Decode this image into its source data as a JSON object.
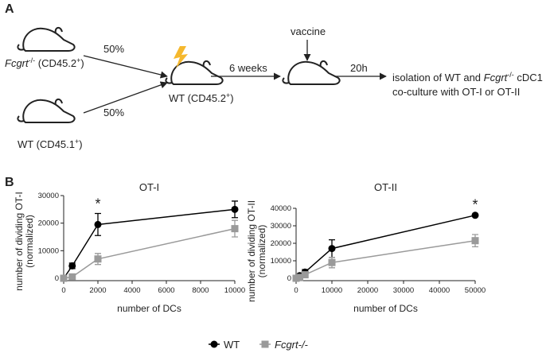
{
  "panel_a": {
    "letter": "A",
    "donor1": [
      "Fcgrt",
      "-/-",
      " (CD45.2",
      "+",
      ")"
    ],
    "donor2": [
      "WT (CD45.1",
      "+",
      ")"
    ],
    "pct1": "50%",
    "pct2": "50%",
    "recipient": [
      "WT (CD45.2",
      "+",
      ")"
    ],
    "step1": "6 weeks",
    "vaccine": "vaccine",
    "step2": "20h",
    "outcome1": [
      "isolation of WT and ",
      "Fcgrt",
      "-/-",
      " cDC1"
    ],
    "outcome2": "co-culture with OT-I or OT-II"
  },
  "panel_b_letter": "B",
  "chart_data": [
    {
      "type": "line",
      "title": "OT-I",
      "xlabel": "number of DCs",
      "ylabel": [
        "number of dividing OT-I",
        "(normalized)"
      ],
      "x": [
        0,
        500,
        2000,
        10000
      ],
      "series": [
        {
          "name": "WT",
          "color": "#000000",
          "marker": "circle",
          "values": [
            0,
            4500,
            19500,
            25000
          ],
          "error": [
            0,
            1000,
            4000,
            3000
          ]
        },
        {
          "name": "Fcgrt-/-",
          "color": "#9a9a9a",
          "marker": "square",
          "values": [
            0,
            500,
            7000,
            18000
          ],
          "error": [
            0,
            500,
            2000,
            3000
          ]
        }
      ],
      "xlim": [
        0,
        10000
      ],
      "xticks": [
        0,
        2000,
        4000,
        6000,
        8000,
        10000
      ],
      "ylim": [
        0,
        30000
      ],
      "yticks": [
        0,
        10000,
        20000,
        30000
      ],
      "annotation": {
        "text": "*",
        "x": 2000
      }
    },
    {
      "type": "line",
      "title": "OT-II",
      "xlabel": "number of DCs",
      "ylabel": [
        "number of dividing OT-II",
        "(normalized)"
      ],
      "x": [
        0,
        1000,
        2500,
        10000,
        50000
      ],
      "series": [
        {
          "color": "#000000",
          "marker": "circle",
          "values": [
            0,
            1500,
            3500,
            17000,
            36000
          ],
          "error": [
            0,
            500,
            1500,
            5000,
            500
          ]
        },
        {
          "color": "#9a9a9a",
          "marker": "square",
          "values": [
            0,
            500,
            2000,
            9000,
            21500
          ],
          "error": [
            0,
            300,
            1000,
            3000,
            3500
          ]
        }
      ],
      "xlim": [
        0,
        50000
      ],
      "xticks": [
        0,
        10000,
        20000,
        30000,
        40000,
        50000
      ],
      "ylim": [
        0,
        40000
      ],
      "yticks": [
        0,
        10000,
        20000,
        30000,
        40000
      ],
      "annotation": {
        "text": "*",
        "x": 50000
      }
    }
  ]
}
